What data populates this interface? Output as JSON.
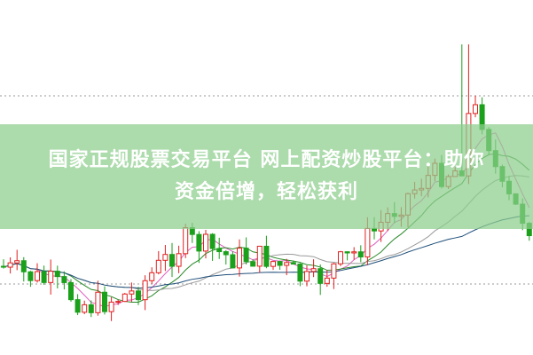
{
  "banner": {
    "lines": [
      "国家正规股票交易平台 网上配资炒股平台：助你",
      "资金倍增，轻松获利"
    ]
  }
}
